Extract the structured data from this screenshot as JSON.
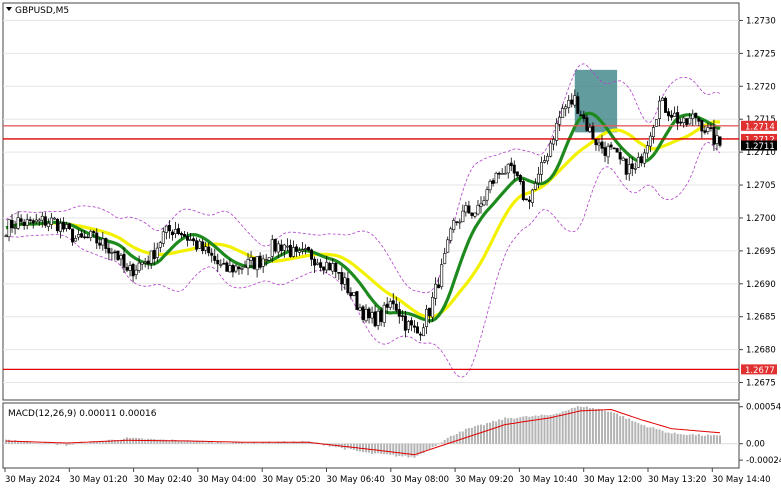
{
  "chart_data": [
    {
      "type": "candlestick",
      "title": "GBPUSD,M5",
      "ylim": [
        1.26725,
        1.27325
      ],
      "y_ticks": [
        "1.2730",
        "1.2725",
        "1.2720",
        "1.2715",
        "1.2710",
        "1.2705",
        "1.2700",
        "1.2695",
        "1.2690",
        "1.2685",
        "1.2680",
        "1.2675"
      ],
      "x_ticks": [
        "30 May 2024",
        "30 May 01:20",
        "30 May 02:40",
        "30 May 04:00",
        "30 May 05:20",
        "30 May 06:40",
        "30 May 08:00",
        "30 May 09:20",
        "30 May 10:40",
        "30 May 12:00",
        "30 May 13:20",
        "30 May 14:40"
      ],
      "close_path": [
        [
          0,
          1.26985
        ],
        [
          4,
          1.26995
        ],
        [
          8,
          1.2699
        ],
        [
          12,
          1.26995
        ],
        [
          16,
          1.26995
        ],
        [
          20,
          1.2698
        ],
        [
          24,
          1.26965
        ],
        [
          28,
          1.2697
        ],
        [
          32,
          1.2696
        ],
        [
          36,
          1.2695
        ],
        [
          40,
          1.26915
        ],
        [
          44,
          1.2693
        ],
        [
          48,
          1.2694
        ],
        [
          52,
          1.26975
        ],
        [
          56,
          1.26985
        ],
        [
          60,
          1.2697
        ],
        [
          64,
          1.26955
        ],
        [
          68,
          1.2694
        ],
        [
          72,
          1.2692
        ],
        [
          76,
          1.26925
        ],
        [
          80,
          1.2693
        ],
        [
          84,
          1.26935
        ],
        [
          88,
          1.26955
        ],
        [
          92,
          1.2696
        ],
        [
          96,
          1.2694
        ],
        [
          100,
          1.26945
        ],
        [
          104,
          1.26935
        ],
        [
          108,
          1.26925
        ],
        [
          112,
          1.269
        ],
        [
          116,
          1.2687
        ],
        [
          120,
          1.26845
        ],
        [
          124,
          1.2685
        ],
        [
          128,
          1.26875
        ],
        [
          132,
          1.2684
        ],
        [
          136,
          1.26825
        ],
        [
          140,
          1.2686
        ],
        [
          144,
          1.2692
        ],
        [
          148,
          1.2699
        ],
        [
          152,
          1.2701
        ],
        [
          156,
          1.2701
        ],
        [
          160,
          1.2705
        ],
        [
          164,
          1.27075
        ],
        [
          168,
          1.27065
        ],
        [
          172,
          1.27025
        ],
        [
          176,
          1.2706
        ],
        [
          180,
          1.27115
        ],
        [
          184,
          1.27165
        ],
        [
          188,
          1.2718
        ],
        [
          192,
          1.2714
        ],
        [
          196,
          1.2711
        ],
        [
          200,
          1.271
        ],
        [
          204,
          1.2708
        ],
        [
          208,
          1.2707
        ],
        [
          212,
          1.2712
        ],
        [
          216,
          1.27175
        ],
        [
          220,
          1.2716
        ],
        [
          224,
          1.2714
        ],
        [
          228,
          1.27155
        ],
        [
          232,
          1.2713
        ],
        [
          236,
          1.2711
        ]
      ],
      "candle_seed": 7,
      "indicators": [
        {
          "name": "",
          "color": "#1e8a1e",
          "period": 30
        },
        {
          "name": "",
          "color": "#f2f200",
          "period": 60
        }
      ],
      "bollinger_color": "#b040c8",
      "horizontal_lines": [
        {
          "value": 1.2714,
          "color": "#e06060"
        },
        {
          "value": 1.2712,
          "color": "#e00000"
        },
        {
          "value": 1.2677,
          "color": "#e00000"
        }
      ],
      "price_tags": [
        {
          "value": 1.2714,
          "label": "1.2714",
          "bg": "#e03030",
          "fg": "#ffffff"
        },
        {
          "value": 1.2712,
          "label": "1.2712",
          "bg": "#e03030",
          "fg": "#ffffff"
        },
        {
          "value": 1.2711,
          "label": "1.2711",
          "bg": "#000000",
          "fg": "#ffffff"
        },
        {
          "value": 1.2677,
          "label": "1.2677",
          "bg": "#e03030",
          "fg": "#ffffff"
        }
      ],
      "highlight_zone": {
        "x_from": 188,
        "x_to": 202,
        "y_from": 1.2713,
        "y_to": 1.27225,
        "color": "#2f7b7f"
      }
    },
    {
      "type": "macd",
      "label": "MACD(12,26,9) 0.00011 0.00016",
      "ylim": [
        -0.00034,
        0.00058
      ],
      "y_ticks": [
        "0.00054",
        "0.00",
        "-0.00024"
      ],
      "histogram_points": [
        [
          0,
          6e-05
        ],
        [
          20,
          -2e-05
        ],
        [
          40,
          8e-05
        ],
        [
          60,
          4e-05
        ],
        [
          80,
          1e-05
        ],
        [
          100,
          3e-05
        ],
        [
          120,
          -0.00014
        ],
        [
          135,
          -0.0002
        ],
        [
          150,
          0.00018
        ],
        [
          165,
          0.00037
        ],
        [
          180,
          0.00042
        ],
        [
          190,
          0.00055
        ],
        [
          200,
          0.00047
        ],
        [
          210,
          0.00028
        ],
        [
          220,
          0.00015
        ],
        [
          236,
          0.00011
        ]
      ],
      "signal_points": [
        [
          0,
          4e-05
        ],
        [
          20,
          1e-05
        ],
        [
          40,
          5e-05
        ],
        [
          60,
          4e-05
        ],
        [
          80,
          2e-05
        ],
        [
          100,
          2e-05
        ],
        [
          120,
          -8e-05
        ],
        [
          135,
          -0.00016
        ],
        [
          150,
          6e-05
        ],
        [
          165,
          0.00028
        ],
        [
          180,
          0.00038
        ],
        [
          190,
          0.00048
        ],
        [
          200,
          0.0005
        ],
        [
          210,
          0.00035
        ],
        [
          220,
          0.00022
        ],
        [
          236,
          0.00016
        ]
      ],
      "histogram_color": "#b4b4b4",
      "signal_color": "#e00000"
    }
  ]
}
